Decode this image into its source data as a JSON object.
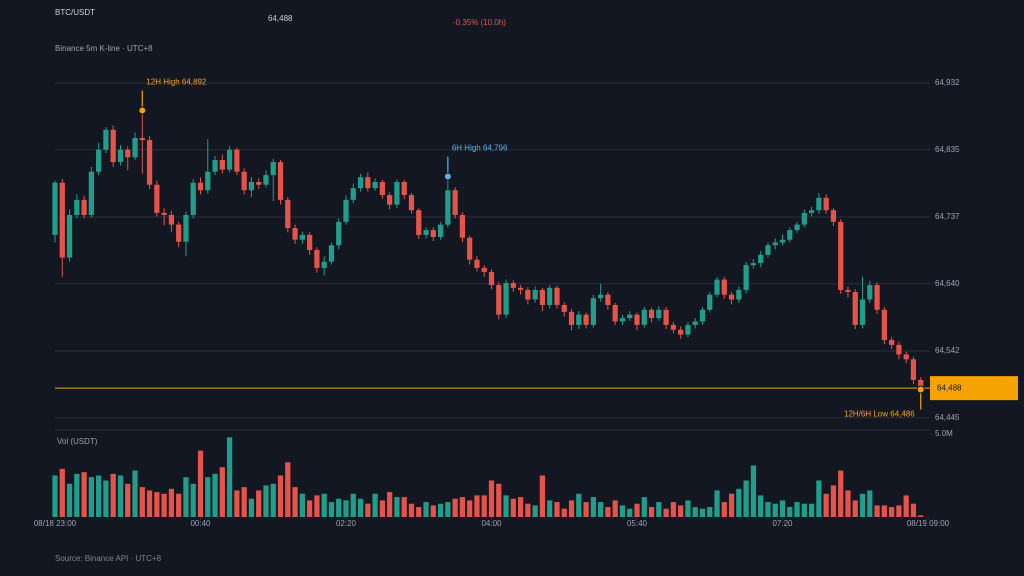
{
  "chart_data": {
    "type": "candlestick",
    "title": "BTC/USDT",
    "subtitle": "Binance 5m K-line · UTC+8",
    "source": "Source: Binance API · UTC+8",
    "change_label": "-0.35% (10.0h)",
    "change_color": "#e5534b",
    "last_price": {
      "value": 64488,
      "label": "64,488"
    },
    "last_price_color": "#f5a300",
    "up_color": "#1f9e8c",
    "down_color": "#e5534b",
    "grid": true,
    "xlim": [
      0,
      120
    ],
    "xticks": [
      {
        "value": 0,
        "label": "08/18 23:00"
      },
      {
        "value": 20,
        "label": "00:40"
      },
      {
        "value": 40,
        "label": "02:20"
      },
      {
        "value": 60,
        "label": "04:00"
      },
      {
        "value": 80,
        "label": "05:40"
      },
      {
        "value": 100,
        "label": "07:20"
      },
      {
        "value": 120,
        "label": "08/19 09:00"
      }
    ],
    "ylim": [
      64430,
      64951
    ],
    "yticks": [
      {
        "value": 64932,
        "label": "64,932"
      },
      {
        "value": 64835,
        "label": "64,835"
      },
      {
        "value": 64737,
        "label": "64,737"
      },
      {
        "value": 64640,
        "label": "64,640"
      },
      {
        "value": 64542,
        "label": "64,542"
      },
      {
        "value": 64445,
        "label": "64,445"
      }
    ],
    "open": [
      64711,
      64787,
      64678,
      64740,
      64762,
      64740,
      64803,
      64835,
      64864,
      64817,
      64835,
      64824,
      64852,
      64849,
      64784,
      64743,
      64740,
      64726,
      64701,
      64740,
      64787,
      64776,
      64803,
      64820,
      64806,
      64835,
      64803,
      64776,
      64788,
      64784,
      64798,
      64817,
      64762,
      64721,
      64704,
      64711,
      64689,
      64663,
      64672,
      64696,
      64730,
      64762,
      64779,
      64795,
      64779,
      64788,
      64769,
      64755,
      64788,
      64769,
      64747,
      64711,
      64718,
      64708,
      64726,
      64776,
      64740,
      64707,
      64675,
      64663,
      64657,
      64638,
      64595,
      64641,
      64634,
      64631,
      64617,
      64631,
      64609,
      64634,
      64609,
      64599,
      64580,
      64595,
      64580,
      64619,
      64624,
      64609,
      64585,
      64590,
      64595,
      64580,
      64602,
      64590,
      64602,
      64580,
      64573,
      64566,
      64580,
      64585,
      64602,
      64624,
      64646,
      64624,
      64617,
      64631,
      64667,
      64670,
      64682,
      64696,
      64700,
      64704,
      64718,
      64726,
      64743,
      64747,
      64765,
      64747,
      64730,
      64631,
      64628,
      64580,
      64617,
      64638,
      64602,
      64558,
      64551,
      64537,
      64530,
      64500
    ],
    "high": [
      64790,
      64792,
      64748,
      64770,
      64768,
      64810,
      64845,
      64868,
      64870,
      64842,
      64840,
      64860,
      64892,
      64855,
      64790,
      64750,
      64746,
      64730,
      64745,
      64792,
      64795,
      64850,
      64826,
      64828,
      64840,
      64838,
      64808,
      64795,
      64793,
      64805,
      64822,
      64820,
      64766,
      64726,
      64716,
      64715,
      64693,
      64680,
      64700,
      64735,
      64768,
      64786,
      64800,
      64802,
      64793,
      64791,
      64773,
      64792,
      64791,
      64772,
      64750,
      64722,
      64722,
      64730,
      64796,
      64780,
      64744,
      64710,
      64680,
      64667,
      64661,
      64642,
      64646,
      64645,
      64638,
      64635,
      64636,
      64634,
      64638,
      64637,
      64613,
      64603,
      64600,
      64598,
      64624,
      64640,
      64628,
      64612,
      64595,
      64600,
      64598,
      64606,
      64605,
      64607,
      64606,
      64584,
      64578,
      64584,
      64590,
      64606,
      64628,
      64650,
      64650,
      64628,
      64636,
      64672,
      64676,
      64688,
      64700,
      64706,
      64712,
      64722,
      64730,
      64748,
      64752,
      64772,
      64770,
      64750,
      64734,
      64636,
      64632,
      64650,
      64644,
      64642,
      64606,
      64562,
      64556,
      64541,
      64534,
      64504
    ],
    "low": [
      64700,
      64650,
      64672,
      64735,
      64735,
      64736,
      64798,
      64830,
      64810,
      64812,
      64805,
      64820,
      64800,
      64778,
      64738,
      64725,
      64715,
      64693,
      64680,
      64735,
      64770,
      64771,
      64798,
      64800,
      64802,
      64798,
      64770,
      64766,
      64778,
      64780,
      64760,
      64755,
      64715,
      64698,
      64698,
      64682,
      64656,
      64652,
      64668,
      64690,
      64726,
      64757,
      64774,
      64774,
      64775,
      64764,
      64748,
      64750,
      64763,
      64742,
      64705,
      64706,
      64702,
      64704,
      64722,
      64735,
      64700,
      64668,
      64658,
      64650,
      64632,
      64588,
      64590,
      64628,
      64624,
      64610,
      64612,
      64600,
      64604,
      64604,
      64592,
      64572,
      64574,
      64575,
      64576,
      64614,
      64602,
      64580,
      64580,
      64586,
      64572,
      64576,
      64584,
      64586,
      64574,
      64568,
      64560,
      64562,
      64575,
      64580,
      64598,
      64620,
      64618,
      64610,
      64612,
      64626,
      64662,
      64664,
      64678,
      64690,
      64696,
      64700,
      64714,
      64722,
      64738,
      64742,
      64742,
      64724,
      64625,
      64620,
      64574,
      64575,
      64612,
      64596,
      64552,
      64545,
      64530,
      64524,
      64494,
      64486
    ],
    "close": [
      64787,
      64678,
      64740,
      64762,
      64740,
      64803,
      64835,
      64864,
      64817,
      64835,
      64824,
      64852,
      64849,
      64784,
      64743,
      64740,
      64726,
      64701,
      64740,
      64787,
      64776,
      64803,
      64820,
      64806,
      64835,
      64803,
      64776,
      64788,
      64784,
      64798,
      64817,
      64762,
      64721,
      64704,
      64711,
      64689,
      64663,
      64672,
      64696,
      64730,
      64762,
      64779,
      64795,
      64779,
      64788,
      64769,
      64755,
      64788,
      64769,
      64747,
      64711,
      64718,
      64708,
      64726,
      64776,
      64740,
      64707,
      64675,
      64663,
      64657,
      64638,
      64595,
      64641,
      64634,
      64631,
      64617,
      64631,
      64609,
      64634,
      64609,
      64599,
      64580,
      64595,
      64580,
      64619,
      64624,
      64609,
      64585,
      64590,
      64595,
      64580,
      64602,
      64590,
      64602,
      64580,
      64573,
      64566,
      64580,
      64585,
      64602,
      64624,
      64646,
      64624,
      64617,
      64631,
      64667,
      64670,
      64682,
      64696,
      64700,
      64704,
      64718,
      64726,
      64743,
      64747,
      64765,
      64747,
      64730,
      64631,
      64628,
      64580,
      64617,
      64638,
      64602,
      64558,
      64551,
      64537,
      64530,
      64500,
      64488
    ],
    "volume": {
      "label": "Vol (USDT)",
      "ylim": [
        0,
        5000000
      ],
      "yticks": [
        {
          "value": 5000000,
          "label": "5.0M"
        }
      ],
      "values": [
        2500000,
        2900000,
        2000000,
        2600000,
        2700000,
        2400000,
        2500000,
        2200000,
        2600000,
        2500000,
        2000000,
        2800000,
        1800000,
        1600000,
        1500000,
        1400000,
        1700000,
        1400000,
        2400000,
        2000000,
        4000000,
        2400000,
        2600000,
        3000000,
        4800000,
        1600000,
        1800000,
        1100000,
        1600000,
        1900000,
        2000000,
        2500000,
        3300000,
        1800000,
        1400000,
        1000000,
        1300000,
        1400000,
        900000,
        1100000,
        1000000,
        1400000,
        1100000,
        800000,
        1400000,
        1000000,
        1500000,
        1200000,
        1200000,
        800000,
        600000,
        900000,
        700000,
        800000,
        900000,
        1100000,
        1200000,
        1000000,
        1300000,
        1300000,
        2200000,
        2000000,
        1300000,
        1100000,
        1200000,
        800000,
        700000,
        2500000,
        1000000,
        900000,
        500000,
        1000000,
        1400000,
        900000,
        1200000,
        900000,
        600000,
        1000000,
        700000,
        500000,
        800000,
        1200000,
        600000,
        900000,
        500000,
        900000,
        700000,
        1000000,
        600000,
        500000,
        600000,
        1600000,
        900000,
        1400000,
        1700000,
        2200000,
        3100000,
        1300000,
        900000,
        800000,
        1000000,
        600000,
        900000,
        800000,
        800000,
        2200000,
        1400000,
        1900000,
        2800000,
        1600000,
        1000000,
        1400000,
        1600000,
        700000,
        700000,
        600000,
        700000,
        1300000,
        800000,
        100000
      ]
    },
    "annotations": [
      {
        "text": "12H High 64,892",
        "value": 64892,
        "color": "#f5a300"
      },
      {
        "text": "6H High 64,796",
        "value": 64796,
        "color": "#5ab4e6"
      },
      {
        "text": "12H/6H Low 64,486",
        "value": 64486,
        "color": "#f5a300"
      }
    ]
  }
}
